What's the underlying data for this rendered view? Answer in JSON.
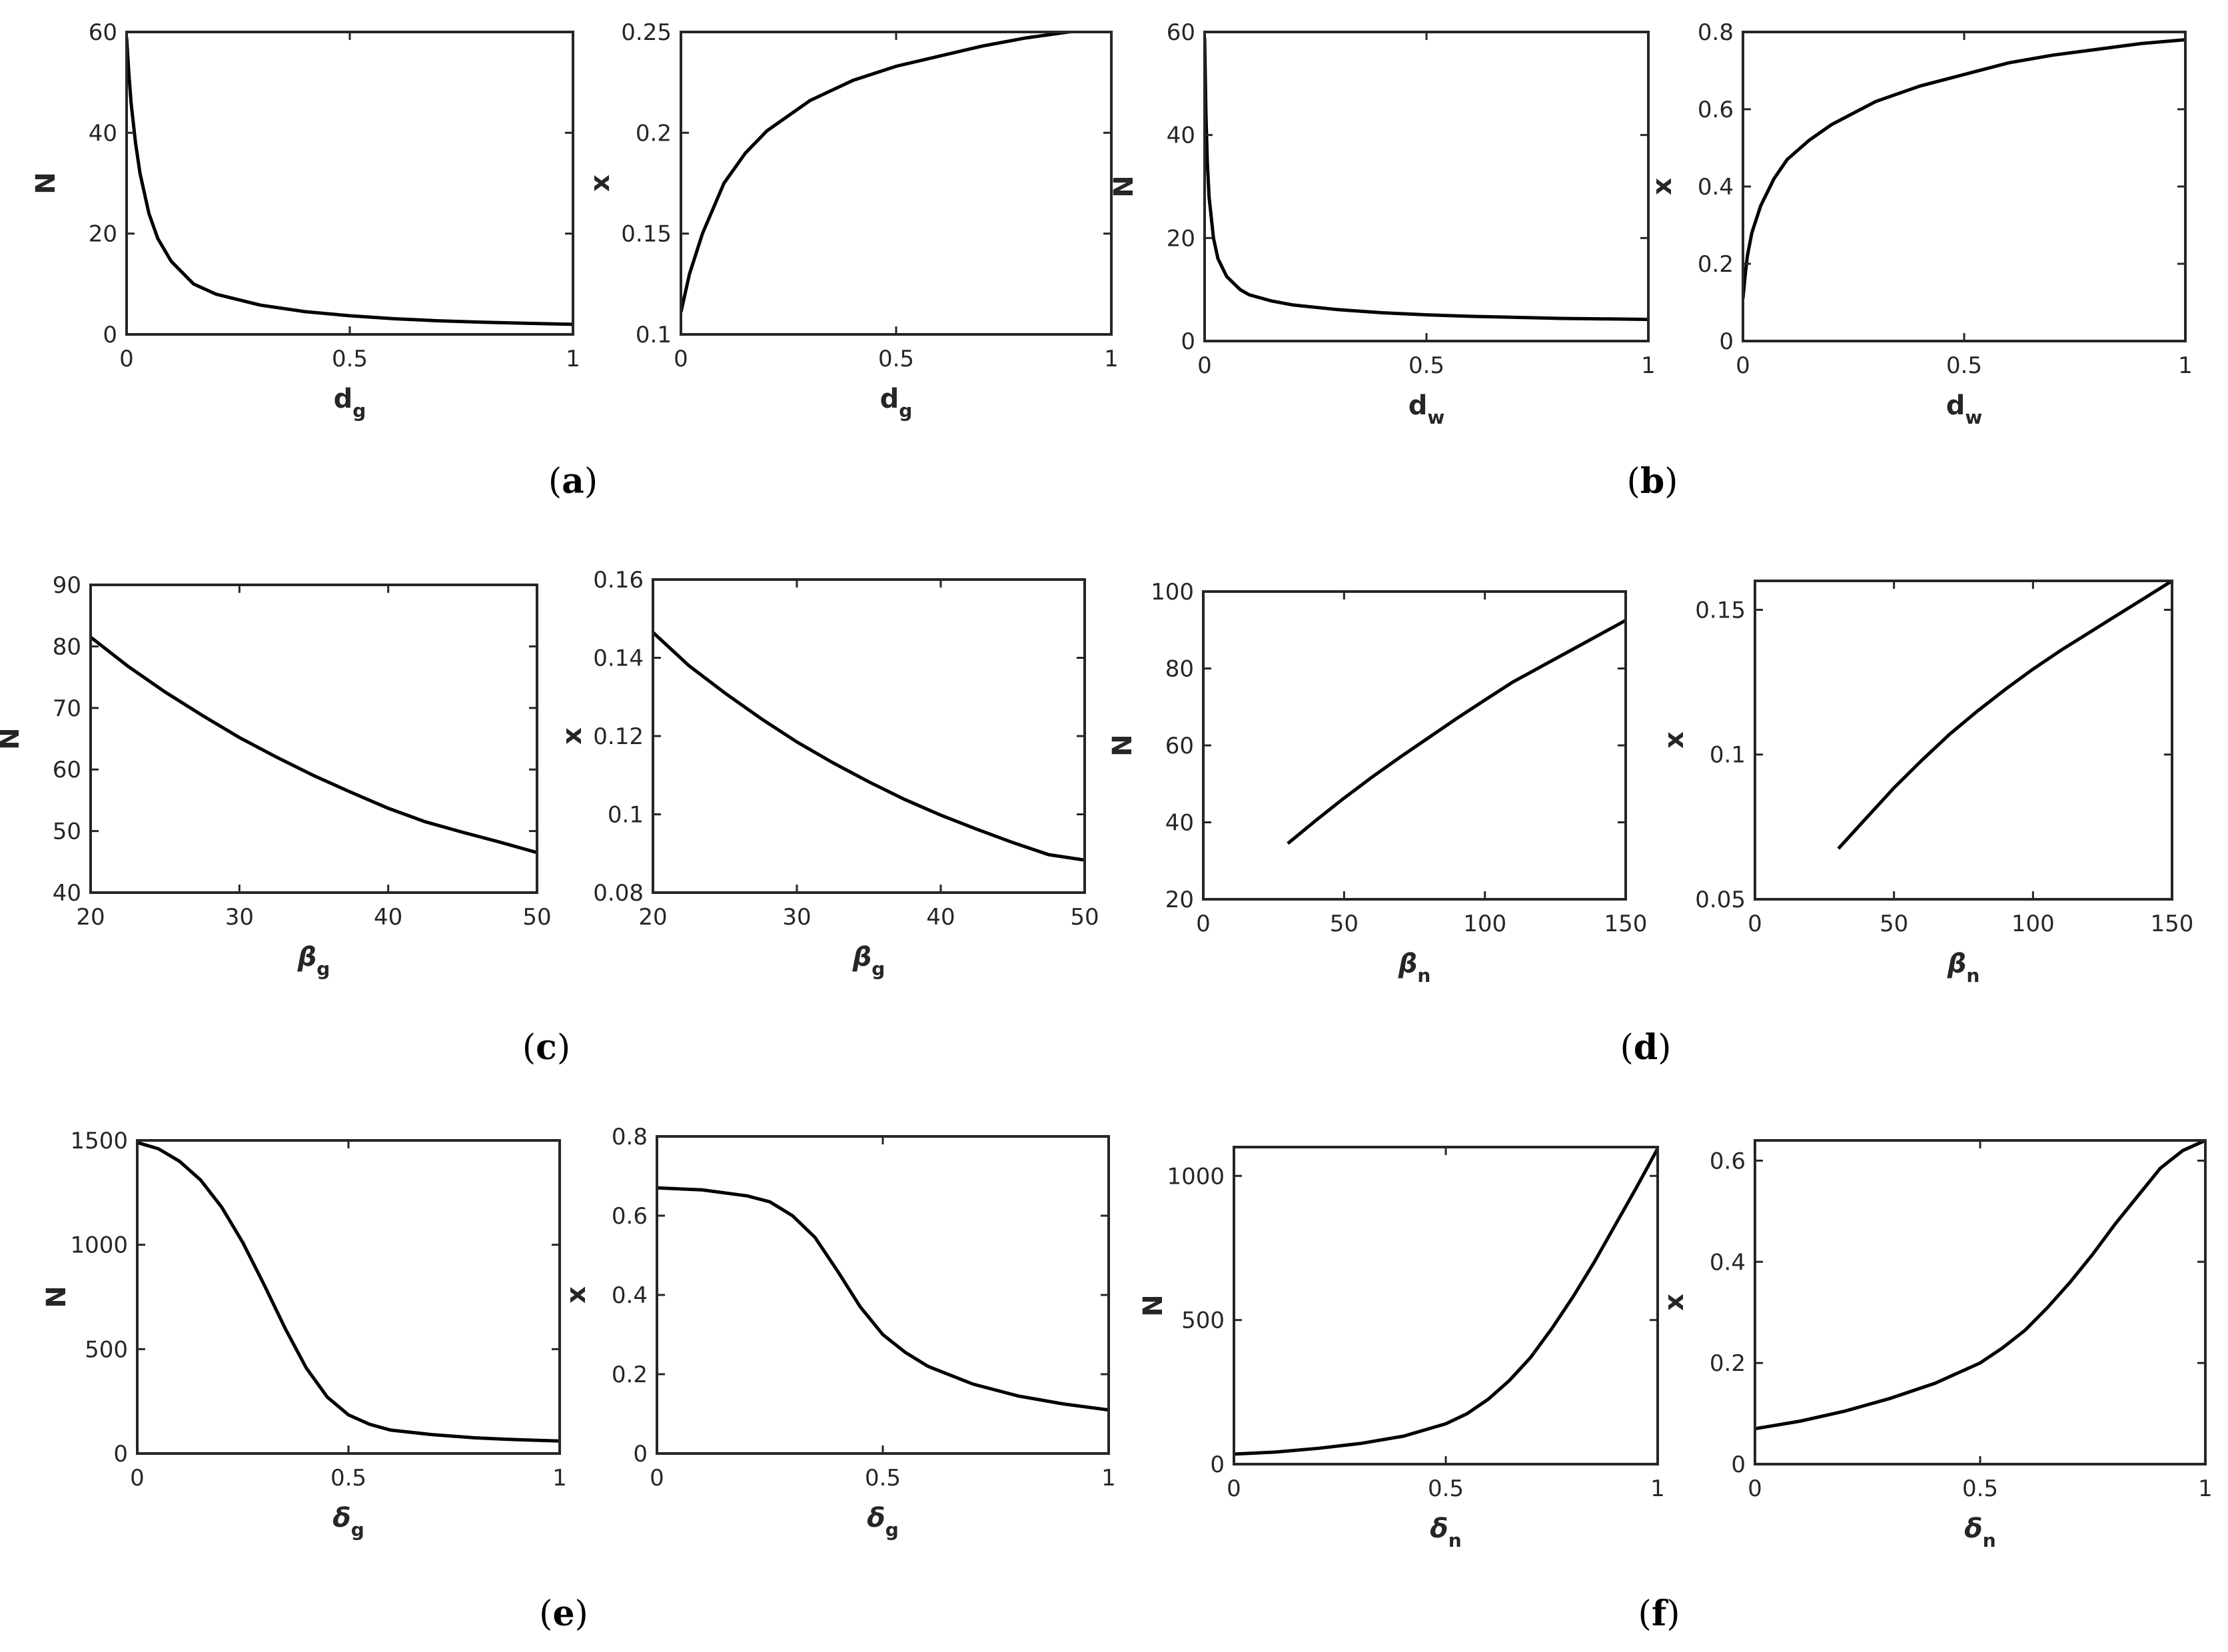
{
  "panels": [
    {
      "label": "(a)",
      "bold": "a"
    },
    {
      "label": "(b)",
      "bold": "b"
    },
    {
      "label": "(c)",
      "bold": "c"
    },
    {
      "label": "(d)",
      "bold": "d"
    },
    {
      "label": "(e)",
      "bold": "e"
    },
    {
      "label": "(f)",
      "bold": "f"
    }
  ],
  "chart_data": [
    {
      "type": "line",
      "panel": "a",
      "xlabel": {
        "main": "d",
        "sub": "g",
        "greek": false
      },
      "ylabel": "N",
      "xlim": [
        0,
        1
      ],
      "ylim": [
        0,
        60
      ],
      "xticks": [
        0,
        0.5,
        1
      ],
      "yticks": [
        0,
        20,
        40,
        60
      ],
      "ytick_labels": [
        "0",
        "20",
        "40",
        "60"
      ],
      "x": [
        0,
        0.005,
        0.01,
        0.02,
        0.03,
        0.05,
        0.07,
        0.1,
        0.15,
        0.2,
        0.3,
        0.4,
        0.5,
        0.6,
        0.7,
        0.8,
        0.9,
        1.0
      ],
      "y": [
        59,
        52,
        46,
        38,
        32,
        24,
        19,
        14.5,
        10,
        8,
        5.8,
        4.5,
        3.7,
        3.1,
        2.7,
        2.4,
        2.2,
        2.0
      ]
    },
    {
      "type": "line",
      "panel": "a",
      "xlabel": {
        "main": "d",
        "sub": "g",
        "greek": false
      },
      "ylabel": "x",
      "xlim": [
        0,
        1
      ],
      "ylim": [
        0.1,
        0.25
      ],
      "xticks": [
        0,
        0.5,
        1
      ],
      "yticks": [
        0.1,
        0.15,
        0.2,
        0.25
      ],
      "ytick_labels": [
        "0.1",
        "0.15",
        "0.2",
        "0.25"
      ],
      "x": [
        0,
        0.02,
        0.05,
        0.1,
        0.15,
        0.2,
        0.3,
        0.4,
        0.5,
        0.6,
        0.7,
        0.8,
        0.9,
        1.0
      ],
      "y": [
        0.111,
        0.13,
        0.15,
        0.175,
        0.19,
        0.201,
        0.216,
        0.226,
        0.233,
        0.238,
        0.243,
        0.247,
        0.25,
        0.252
      ]
    },
    {
      "type": "line",
      "panel": "b",
      "xlabel": {
        "main": "d",
        "sub": "w",
        "greek": false
      },
      "ylabel": "N",
      "xlim": [
        0,
        1
      ],
      "ylim": [
        0,
        60
      ],
      "xticks": [
        0,
        0.5,
        1
      ],
      "yticks": [
        0,
        20,
        40,
        60
      ],
      "ytick_labels": [
        "0",
        "20",
        "40",
        "60"
      ],
      "x": [
        0,
        0.003,
        0.006,
        0.01,
        0.02,
        0.03,
        0.05,
        0.08,
        0.1,
        0.15,
        0.2,
        0.3,
        0.4,
        0.5,
        0.6,
        0.7,
        0.8,
        0.9,
        1.0
      ],
      "y": [
        59,
        44,
        35,
        28,
        20,
        16,
        12.5,
        10,
        9,
        7.8,
        7,
        6.1,
        5.5,
        5.1,
        4.8,
        4.6,
        4.4,
        4.3,
        4.2
      ]
    },
    {
      "type": "line",
      "panel": "b",
      "xlabel": {
        "main": "d",
        "sub": "w",
        "greek": false
      },
      "ylabel": "x",
      "xlim": [
        0,
        1
      ],
      "ylim": [
        0,
        0.8
      ],
      "xticks": [
        0,
        0.5,
        1
      ],
      "yticks": [
        0,
        0.2,
        0.4,
        0.6,
        0.8
      ],
      "ytick_labels": [
        "0",
        "0.2",
        "0.4",
        "0.6",
        "0.8"
      ],
      "x": [
        0,
        0.005,
        0.01,
        0.02,
        0.04,
        0.07,
        0.1,
        0.15,
        0.2,
        0.3,
        0.4,
        0.5,
        0.6,
        0.7,
        0.8,
        0.9,
        1.0
      ],
      "y": [
        0.11,
        0.17,
        0.22,
        0.28,
        0.35,
        0.42,
        0.47,
        0.52,
        0.56,
        0.62,
        0.66,
        0.69,
        0.72,
        0.74,
        0.755,
        0.77,
        0.78
      ]
    },
    {
      "type": "line",
      "panel": "c",
      "xlabel": {
        "main": "β",
        "sub": "g",
        "greek": true
      },
      "ylabel": "N",
      "xlim": [
        20,
        50
      ],
      "ylim": [
        40,
        90
      ],
      "xticks": [
        20,
        30,
        40,
        50
      ],
      "yticks": [
        40,
        50,
        60,
        70,
        80,
        90
      ],
      "ytick_labels": [
        "40",
        "50",
        "60",
        "70",
        "80",
        "90"
      ],
      "x": [
        20,
        22.5,
        25,
        27.5,
        30,
        32.5,
        35,
        37.5,
        40,
        42.5,
        45,
        47.5,
        50
      ],
      "y": [
        81.5,
        76.8,
        72.6,
        68.8,
        65.2,
        62,
        59,
        56.3,
        53.7,
        51.5,
        49.8,
        48.2,
        46.5
      ]
    },
    {
      "type": "line",
      "panel": "c",
      "xlabel": {
        "main": "β",
        "sub": "g",
        "greek": true
      },
      "ylabel": "x",
      "xlim": [
        20,
        50
      ],
      "ylim": [
        0.08,
        0.16
      ],
      "xticks": [
        20,
        30,
        40,
        50
      ],
      "yticks": [
        0.08,
        0.1,
        0.12,
        0.14,
        0.16
      ],
      "ytick_labels": [
        "0.08",
        "0.1",
        "0.12",
        "0.14",
        "0.16"
      ],
      "x": [
        20,
        22.5,
        25,
        27.5,
        30,
        32.5,
        35,
        37.5,
        40,
        42.5,
        45,
        47.5,
        50
      ],
      "y": [
        0.1465,
        0.138,
        0.131,
        0.1245,
        0.1185,
        0.1132,
        0.1083,
        0.1038,
        0.0998,
        0.0962,
        0.0928,
        0.0897,
        0.0883
      ]
    },
    {
      "type": "line",
      "panel": "d",
      "xlabel": {
        "main": "β",
        "sub": "n",
        "greek": true
      },
      "ylabel": "N",
      "xlim": [
        0,
        150
      ],
      "ylim": [
        20,
        100
      ],
      "xticks": [
        0,
        50,
        100,
        150
      ],
      "yticks": [
        20,
        40,
        60,
        80,
        100
      ],
      "ytick_labels": [
        "20",
        "40",
        "60",
        "80",
        "100"
      ],
      "x": [
        30,
        40,
        50,
        60,
        70,
        80,
        90,
        100,
        110,
        120,
        130,
        140,
        150
      ],
      "y": [
        34.5,
        40.5,
        46.3,
        51.8,
        57,
        62,
        67,
        71.8,
        76.5,
        80.5,
        84.5,
        88.5,
        92.5
      ]
    },
    {
      "type": "line",
      "panel": "d",
      "xlabel": {
        "main": "β",
        "sub": "n",
        "greek": true
      },
      "ylabel": "x",
      "xlim": [
        0,
        150
      ],
      "ylim": [
        0.05,
        0.16
      ],
      "xticks": [
        0,
        50,
        100,
        150
      ],
      "yticks": [
        0.05,
        0.1,
        0.15
      ],
      "ytick_labels": [
        "0.05",
        "0.1",
        "0.15"
      ],
      "x": [
        30,
        40,
        50,
        60,
        70,
        80,
        90,
        100,
        110,
        120,
        130,
        140,
        150
      ],
      "y": [
        0.0675,
        0.078,
        0.0885,
        0.098,
        0.107,
        0.115,
        0.1225,
        0.1295,
        0.136,
        0.142,
        0.148,
        0.154,
        0.16
      ]
    },
    {
      "type": "line",
      "panel": "e",
      "xlabel": {
        "main": "δ",
        "sub": "g",
        "greek": true
      },
      "ylabel": "N",
      "xlim": [
        0,
        1
      ],
      "ylim": [
        0,
        1500
      ],
      "xticks": [
        0,
        0.5,
        1
      ],
      "yticks": [
        0,
        500,
        1000,
        1500
      ],
      "ytick_labels": [
        "0",
        "500",
        "1000",
        "1500"
      ],
      "x": [
        0,
        0.05,
        0.1,
        0.15,
        0.2,
        0.25,
        0.3,
        0.35,
        0.4,
        0.45,
        0.5,
        0.55,
        0.6,
        0.7,
        0.8,
        0.9,
        1.0
      ],
      "y": [
        1490,
        1460,
        1400,
        1310,
        1180,
        1010,
        810,
        600,
        410,
        270,
        185,
        140,
        112,
        90,
        75,
        66,
        60
      ]
    },
    {
      "type": "line",
      "panel": "e",
      "xlabel": {
        "main": "δ",
        "sub": "g",
        "greek": true
      },
      "ylabel": "x",
      "xlim": [
        0,
        1
      ],
      "ylim": [
        0,
        0.8
      ],
      "xticks": [
        0,
        0.5,
        1
      ],
      "yticks": [
        0,
        0.2,
        0.4,
        0.6,
        0.8
      ],
      "ytick_labels": [
        "0",
        "0.2",
        "0.4",
        "0.6",
        "0.8"
      ],
      "x": [
        0,
        0.1,
        0.2,
        0.25,
        0.3,
        0.35,
        0.4,
        0.45,
        0.5,
        0.55,
        0.6,
        0.7,
        0.8,
        0.9,
        1.0
      ],
      "y": [
        0.67,
        0.665,
        0.65,
        0.635,
        0.6,
        0.545,
        0.46,
        0.37,
        0.3,
        0.255,
        0.22,
        0.175,
        0.145,
        0.125,
        0.11
      ]
    },
    {
      "type": "line",
      "panel": "f",
      "xlabel": {
        "main": "δ",
        "sub": "n",
        "greek": true
      },
      "ylabel": "N",
      "xlim": [
        0,
        1
      ],
      "ylim": [
        0,
        1100
      ],
      "xticks": [
        0,
        0.5,
        1
      ],
      "yticks": [
        0,
        500,
        1000
      ],
      "ytick_labels": [
        "0",
        "500",
        "1000"
      ],
      "x": [
        0,
        0.1,
        0.2,
        0.3,
        0.4,
        0.5,
        0.55,
        0.6,
        0.65,
        0.7,
        0.75,
        0.8,
        0.85,
        0.9,
        0.95,
        1.0
      ],
      "y": [
        35,
        42,
        55,
        72,
        97,
        140,
        175,
        225,
        290,
        370,
        470,
        580,
        700,
        830,
        960,
        1095
      ]
    },
    {
      "type": "line",
      "panel": "f",
      "xlabel": {
        "main": "δ",
        "sub": "n",
        "greek": true
      },
      "ylabel": "x",
      "xlim": [
        0,
        1
      ],
      "ylim": [
        0,
        0.64
      ],
      "xticks": [
        0,
        0.5,
        1
      ],
      "yticks": [
        0,
        0.2,
        0.4,
        0.6
      ],
      "ytick_labels": [
        "0",
        "0.2",
        "0.4",
        "0.6"
      ],
      "x": [
        0,
        0.1,
        0.2,
        0.3,
        0.4,
        0.5,
        0.55,
        0.6,
        0.65,
        0.7,
        0.75,
        0.8,
        0.85,
        0.9,
        0.95,
        1.0
      ],
      "y": [
        0.07,
        0.085,
        0.105,
        0.13,
        0.16,
        0.2,
        0.23,
        0.265,
        0.31,
        0.36,
        0.415,
        0.475,
        0.53,
        0.585,
        0.62,
        0.64
      ]
    }
  ]
}
